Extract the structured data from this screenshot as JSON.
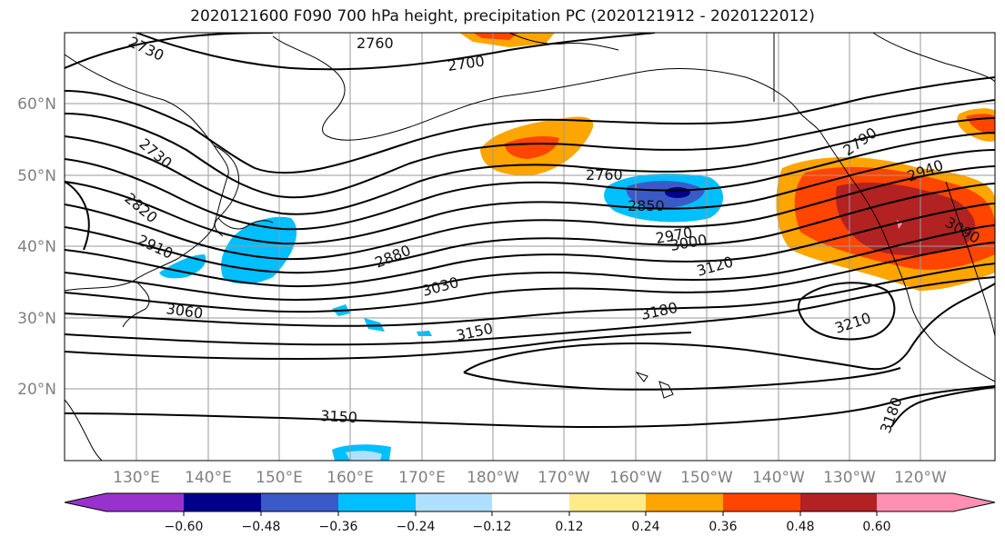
{
  "title": "2020121600 F090 700 hPa height, precipitation PC (2020121912 - 2020122012)",
  "lat_labels": [
    "60°N",
    "50°N",
    "40°N",
    "30°N",
    "20°N"
  ],
  "lon_labels": [
    "130°E",
    "140°E",
    "150°E",
    "160°E",
    "170°E",
    "180°W",
    "170°W",
    "160°W",
    "150°W",
    "140°W",
    "130°W",
    "120°W"
  ],
  "contour_labels": [
    "2730",
    "2760",
    "2700",
    "2730",
    "2820",
    "2910",
    "3060",
    "2880",
    "3030",
    "3150",
    "2760",
    "2850",
    "2970",
    "3000",
    "3120",
    "3180",
    "3210",
    "2940",
    "3090",
    "3150",
    "3180",
    "2790"
  ],
  "colorbar": {
    "ticks": [
      "−0.60",
      "−0.48",
      "−0.36",
      "−0.24",
      "−0.12",
      "0.12",
      "0.24",
      "0.36",
      "0.48",
      "0.60"
    ],
    "colors": [
      "#9932CC",
      "#00008B",
      "#3A5BC7",
      "#00BFFF",
      "#B0E0FF",
      "#FFFFFF",
      "#FFEB8A",
      "#FFA500",
      "#FF4500",
      "#B22222",
      "#FF8FB3"
    ]
  }
}
